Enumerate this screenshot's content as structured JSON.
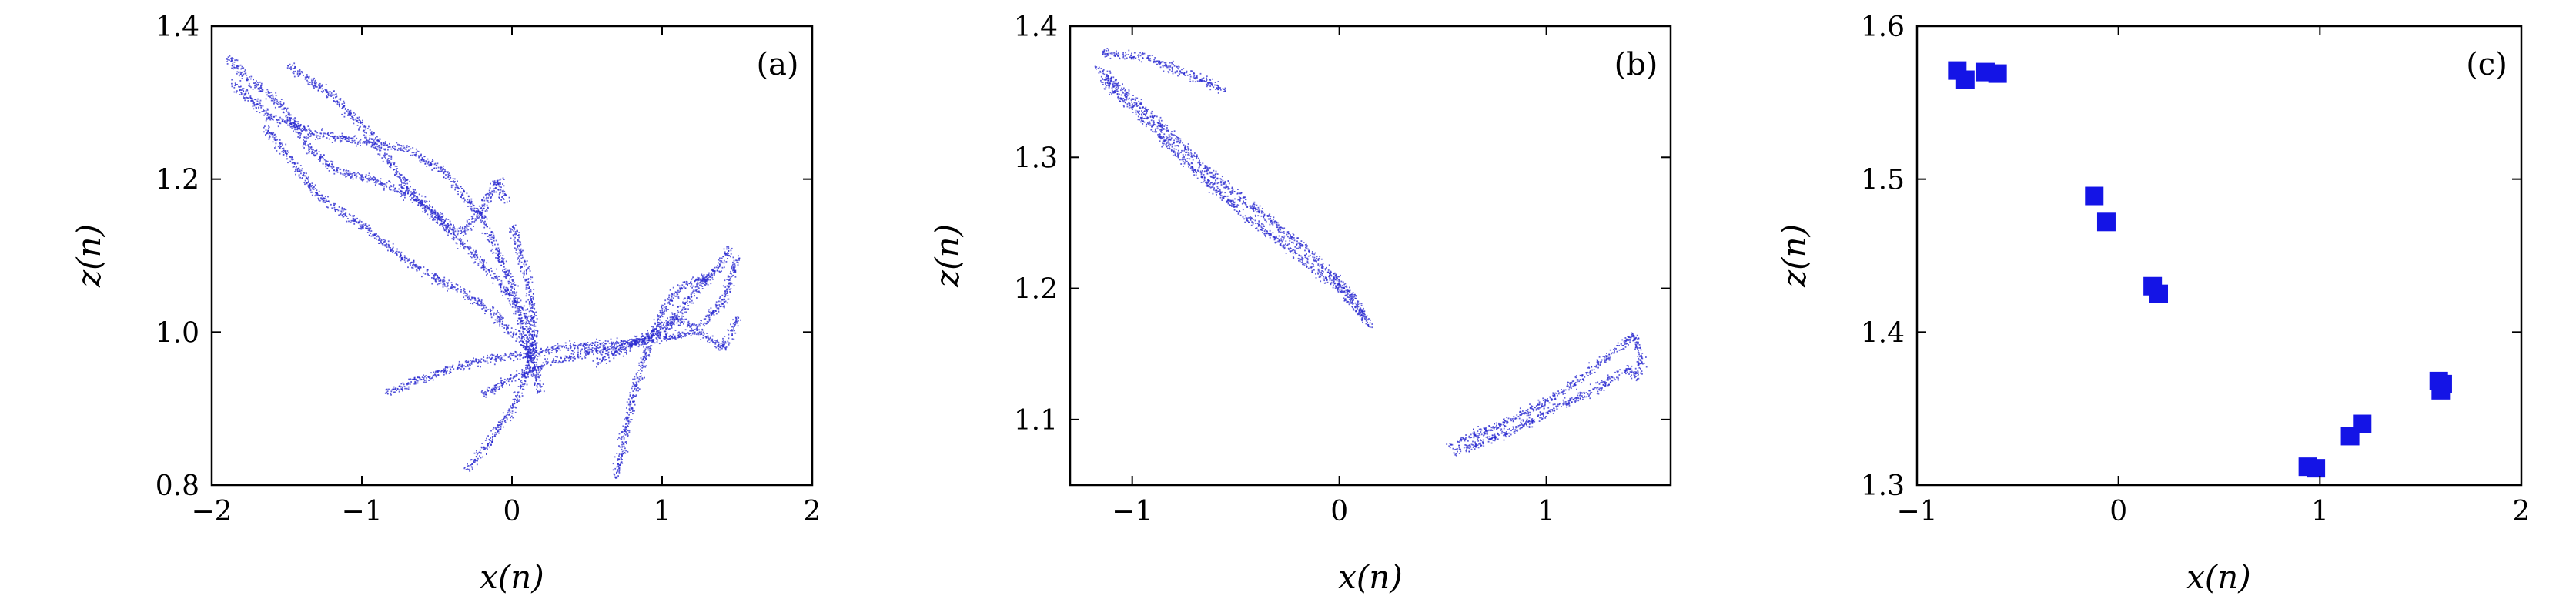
{
  "chart_data": [
    {
      "type": "scatter",
      "panel_label": "(a)",
      "xlabel": "x(n)",
      "ylabel": "z(n)",
      "xlim": [
        -2,
        2
      ],
      "ylim": [
        0.8,
        1.4
      ],
      "xticks": [
        -2,
        -1,
        0,
        1,
        2
      ],
      "xtick_labels": [
        "−2",
        "−1",
        "0",
        "1",
        "2"
      ],
      "yticks": [
        0.8,
        1.0,
        1.2,
        1.4
      ],
      "ytick_labels": [
        "0.8",
        "1.0",
        "1.2",
        "1.4"
      ],
      "marker": "dot",
      "color": "#2a2ad0",
      "attractor_strands": [
        [
          [
            -1.9,
            1.36
          ],
          [
            -1.75,
            1.33
          ],
          [
            -1.55,
            1.3
          ],
          [
            -1.35,
            1.24
          ],
          [
            -1.15,
            1.21
          ],
          [
            -0.9,
            1.2
          ],
          [
            -0.6,
            1.17
          ],
          [
            -0.35,
            1.12
          ],
          [
            -0.1,
            1.07
          ],
          [
            0.1,
            1.02
          ],
          [
            0.18,
            0.92
          ]
        ],
        [
          [
            -1.88,
            1.33
          ],
          [
            -1.6,
            1.28
          ],
          [
            -1.3,
            1.26
          ],
          [
            -1.0,
            1.25
          ],
          [
            -0.7,
            1.24
          ],
          [
            -0.45,
            1.21
          ],
          [
            -0.2,
            1.15
          ],
          [
            0.0,
            1.06
          ],
          [
            0.12,
            0.96
          ]
        ],
        [
          [
            -1.65,
            1.27
          ],
          [
            -1.5,
            1.23
          ],
          [
            -1.3,
            1.18
          ],
          [
            -1.0,
            1.14
          ],
          [
            -0.75,
            1.1
          ],
          [
            -0.5,
            1.07
          ],
          [
            -0.3,
            1.05
          ],
          [
            -0.1,
            1.02
          ],
          [
            0.1,
            0.98
          ]
        ],
        [
          [
            -1.5,
            1.35
          ],
          [
            -1.2,
            1.31
          ],
          [
            -0.95,
            1.26
          ],
          [
            -0.7,
            1.19
          ],
          [
            -0.5,
            1.15
          ],
          [
            -0.35,
            1.13
          ],
          [
            -0.2,
            1.16
          ],
          [
            -0.1,
            1.2
          ],
          [
            -0.05,
            1.17
          ]
        ],
        [
          [
            -0.85,
            0.92
          ],
          [
            -0.6,
            0.94
          ],
          [
            -0.3,
            0.96
          ],
          [
            0.0,
            0.97
          ],
          [
            0.3,
            0.98
          ],
          [
            0.6,
            0.985
          ],
          [
            0.9,
            0.99
          ],
          [
            1.2,
            1.0
          ],
          [
            1.4,
            1.04
          ],
          [
            1.5,
            1.1
          ]
        ],
        [
          [
            -0.2,
            0.92
          ],
          [
            0.1,
            0.95
          ],
          [
            0.4,
            0.97
          ],
          [
            0.7,
            0.98
          ],
          [
            1.0,
            1.0
          ],
          [
            1.2,
            1.05
          ],
          [
            1.35,
            1.08
          ],
          [
            1.45,
            1.11
          ]
        ],
        [
          [
            -0.3,
            0.82
          ],
          [
            -0.15,
            0.86
          ],
          [
            0.0,
            0.9
          ],
          [
            0.1,
            0.95
          ],
          [
            0.15,
            1.0
          ],
          [
            0.1,
            1.07
          ],
          [
            0.0,
            1.14
          ]
        ],
        [
          [
            0.68,
            0.81
          ],
          [
            0.75,
            0.87
          ],
          [
            0.82,
            0.93
          ],
          [
            0.9,
            0.98
          ],
          [
            1.0,
            1.03
          ],
          [
            1.12,
            1.06
          ],
          [
            1.25,
            1.07
          ],
          [
            1.35,
            1.08
          ]
        ],
        [
          [
            0.55,
            0.96
          ],
          [
            0.75,
            0.98
          ],
          [
            0.95,
            1.0
          ],
          [
            1.1,
            1.02
          ],
          [
            1.25,
            1.0
          ],
          [
            1.4,
            0.98
          ],
          [
            1.5,
            1.02
          ]
        ]
      ]
    },
    {
      "type": "scatter",
      "panel_label": "(b)",
      "xlabel": "x(n)",
      "ylabel": "z(n)",
      "xlim": [
        -1.3,
        1.6
      ],
      "ylim": [
        1.05,
        1.4
      ],
      "xticks": [
        -1,
        0,
        1
      ],
      "xtick_labels": [
        "−1",
        "0",
        "1"
      ],
      "yticks": [
        1.1,
        1.2,
        1.3,
        1.4
      ],
      "ytick_labels": [
        "1.1",
        "1.2",
        "1.3",
        "1.4"
      ],
      "marker": "dot",
      "color": "#2a2ad0",
      "attractor_strands": [
        [
          [
            -1.15,
            1.38
          ],
          [
            -0.95,
            1.377
          ],
          [
            -0.75,
            1.365
          ],
          [
            -0.55,
            1.352
          ]
        ],
        [
          [
            -1.18,
            1.37
          ],
          [
            -1.0,
            1.345
          ],
          [
            -0.8,
            1.315
          ],
          [
            -0.6,
            1.285
          ],
          [
            -0.4,
            1.26
          ],
          [
            -0.2,
            1.235
          ],
          [
            0.0,
            1.205
          ],
          [
            0.1,
            1.185
          ],
          [
            0.15,
            1.17
          ]
        ],
        [
          [
            -1.15,
            1.36
          ],
          [
            -0.95,
            1.33
          ],
          [
            -0.7,
            1.29
          ],
          [
            -0.45,
            1.255
          ],
          [
            -0.2,
            1.225
          ],
          [
            0.0,
            1.2
          ],
          [
            0.12,
            1.178
          ]
        ],
        [
          [
            0.52,
            1.08
          ],
          [
            0.75,
            1.095
          ],
          [
            0.95,
            1.11
          ],
          [
            1.15,
            1.13
          ],
          [
            1.3,
            1.15
          ],
          [
            1.42,
            1.165
          ],
          [
            1.45,
            1.15
          ],
          [
            1.45,
            1.135
          ]
        ],
        [
          [
            0.55,
            1.075
          ],
          [
            0.8,
            1.09
          ],
          [
            1.05,
            1.11
          ],
          [
            1.25,
            1.125
          ],
          [
            1.4,
            1.14
          ],
          [
            1.44,
            1.13
          ]
        ]
      ]
    },
    {
      "type": "scatter",
      "panel_label": "(c)",
      "xlabel": "x(n)",
      "ylabel": "z(n)",
      "xlim": [
        -1,
        2
      ],
      "ylim": [
        1.3,
        1.6
      ],
      "xticks": [
        -1,
        0,
        1,
        2
      ],
      "xtick_labels": [
        "−1",
        "0",
        "1",
        "2"
      ],
      "yticks": [
        1.3,
        1.4,
        1.5,
        1.6
      ],
      "ytick_labels": [
        "1.3",
        "1.4",
        "1.5",
        "1.6"
      ],
      "marker": "square",
      "color": "#1414e6",
      "points": [
        [
          -0.8,
          1.571
        ],
        [
          -0.76,
          1.565
        ],
        [
          -0.66,
          1.57
        ],
        [
          -0.6,
          1.569
        ],
        [
          -0.12,
          1.489
        ],
        [
          -0.06,
          1.472
        ],
        [
          0.17,
          1.43
        ],
        [
          0.2,
          1.425
        ],
        [
          0.94,
          1.312
        ],
        [
          0.98,
          1.311
        ],
        [
          1.15,
          1.332
        ],
        [
          1.21,
          1.34
        ],
        [
          1.59,
          1.368
        ],
        [
          1.6,
          1.362
        ],
        [
          1.61,
          1.366
        ]
      ]
    }
  ]
}
